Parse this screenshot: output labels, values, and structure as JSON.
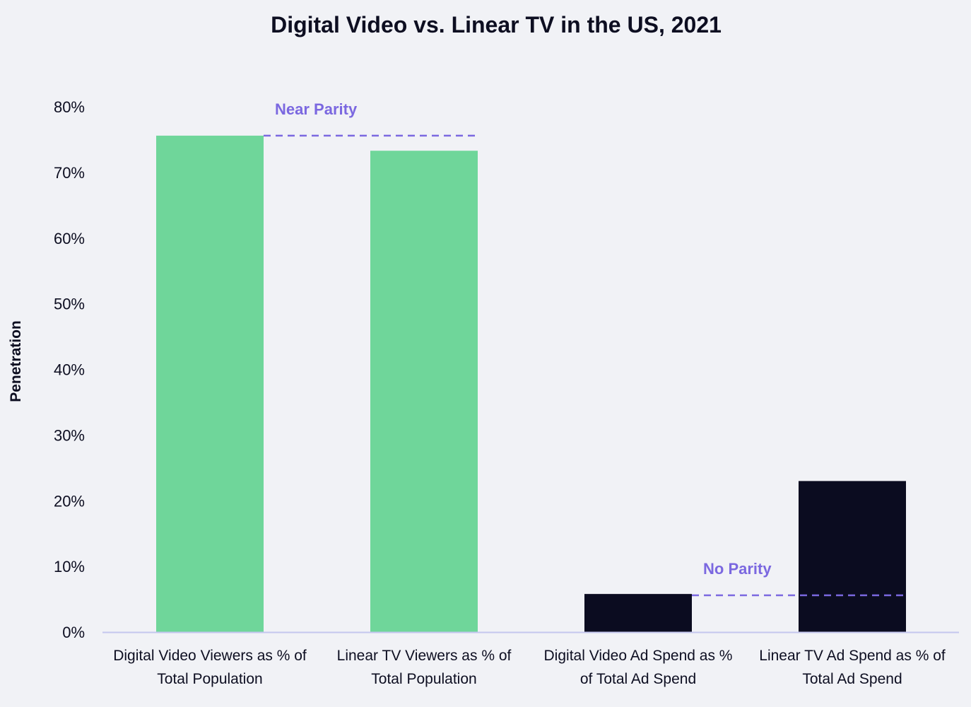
{
  "chart_data": {
    "type": "bar",
    "title": "Digital Video vs. Linear TV in the US, 2021",
    "xlabel": "",
    "ylabel": "Penetration",
    "ylim": [
      0,
      80
    ],
    "yticks": [
      0,
      10,
      20,
      30,
      40,
      50,
      60,
      70,
      80
    ],
    "ytick_labels": [
      "0%",
      "10%",
      "20%",
      "30%",
      "40%",
      "50%",
      "60%",
      "70%",
      "80%"
    ],
    "categories": [
      [
        "Digital Video Viewers as % of",
        "Total Population"
      ],
      [
        "Linear TV Viewers as % of",
        "Total Population"
      ],
      [
        "Digital Video Ad Spend as %",
        "of Total Ad Spend"
      ],
      [
        "Linear TV Ad Spend as % of",
        "Total Ad Spend"
      ]
    ],
    "values": [
      75.6,
      73.3,
      5.8,
      23.0
    ],
    "bar_colors": [
      "#6fd69a",
      "#6fd69a",
      "#0b0c20",
      "#0b0c20"
    ],
    "annotations": [
      {
        "text": "Near Parity",
        "from_bar": 0,
        "to_bar": 1,
        "level": 75.6
      },
      {
        "text": "No Parity",
        "from_bar": 2,
        "to_bar": 3,
        "level": 5.6
      }
    ],
    "colors": {
      "annotation": "#7b68e0",
      "axis": "#c4c6ee",
      "background": "#f1f2f6"
    }
  }
}
